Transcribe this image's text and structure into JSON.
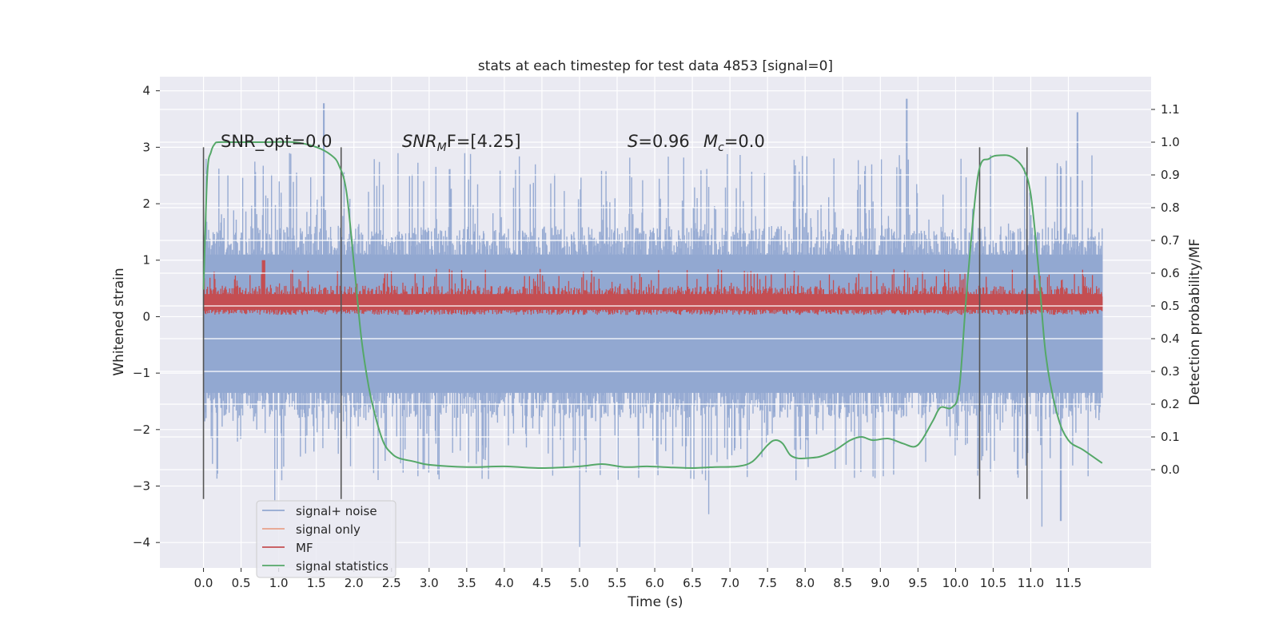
{
  "chart_data": {
    "type": "line",
    "title": "stats at each timestep for test data 4853 [signal=0]",
    "xlabel": "Time (s)",
    "ylabel": "Whitened strain",
    "y2label": "Detection probability/MF",
    "xlim": [
      -0.58,
      12.6
    ],
    "ylim": [
      -4.45,
      4.25
    ],
    "y2lim": [
      -0.3,
      1.2
    ],
    "xticks": [
      "0.0",
      "0.5",
      "1.0",
      "1.5",
      "2.0",
      "2.5",
      "3.0",
      "3.5",
      "4.0",
      "4.5",
      "5.0",
      "5.5",
      "6.0",
      "6.5",
      "7.0",
      "7.5",
      "8.0",
      "8.5",
      "9.0",
      "9.5",
      "10.0",
      "10.5",
      "11.0",
      "11.5"
    ],
    "xtick_values": [
      0.0,
      0.5,
      1.0,
      1.5,
      2.0,
      2.5,
      3.0,
      3.5,
      4.0,
      4.5,
      5.0,
      5.5,
      6.0,
      6.5,
      7.0,
      7.5,
      8.0,
      8.5,
      9.0,
      9.5,
      10.0,
      10.5,
      11.0,
      11.5
    ],
    "yticks": [
      "−4",
      "−3",
      "−2",
      "−1",
      "0",
      "1",
      "2",
      "3",
      "4"
    ],
    "ytick_values": [
      -4,
      -3,
      -2,
      -1,
      0,
      1,
      2,
      3,
      4
    ],
    "y2ticks": [
      "0.0",
      "0.1",
      "0.2",
      "0.3",
      "0.4",
      "0.5",
      "0.6",
      "0.7",
      "0.8",
      "0.9",
      "1.0",
      "1.1"
    ],
    "y2tick_values": [
      0.0,
      0.1,
      0.2,
      0.3,
      0.4,
      0.5,
      0.6,
      0.7,
      0.8,
      0.9,
      1.0,
      1.1
    ],
    "annotations": {
      "snr_opt": "SNR_opt=0.0",
      "snr_mf_sym": "SNR",
      "snr_mf_sub": "M",
      "snr_mf_rest": "F=[4.25]",
      "s_sym": "S",
      "s_rest": "=0.96",
      "mc_sym": "M",
      "mc_sub": "c",
      "mc_rest": "=0.0"
    },
    "vertical_lines": [
      {
        "x": 0.0,
        "y_range": [
          -3.23,
          3.0
        ]
      },
      {
        "x": 1.83,
        "y_range": [
          -3.23,
          3.0
        ]
      },
      {
        "x": 10.32,
        "y_range": [
          -3.23,
          3.0
        ]
      },
      {
        "x": 10.95,
        "y_range": [
          -3.23,
          3.0
        ]
      }
    ],
    "noise_envelope": {
      "t_range": [
        0.0,
        11.95
      ],
      "upper_typical": 1.6,
      "lower_typical": -1.8,
      "peaks": [
        {
          "t": 1.6,
          "v": 3.78
        },
        {
          "t": 9.35,
          "v": 3.86
        },
        {
          "t": 11.62,
          "v": 3.62
        },
        {
          "t": 5.0,
          "v": -4.08
        },
        {
          "t": 11.4,
          "v": -3.62
        },
        {
          "t": 11.15,
          "v": -3.72
        },
        {
          "t": 6.72,
          "v": -3.5
        },
        {
          "t": 0.95,
          "v": -3.25
        }
      ]
    },
    "series": [
      {
        "name": "signal+ noise",
        "color": "#92a8d1"
      },
      {
        "name": "signal only",
        "color": "#e8a18a"
      },
      {
        "name": "MF",
        "color": "#c44e52"
      },
      {
        "name": "signal statistics",
        "color": "#55a868",
        "axis": "right",
        "x": [
          0.0,
          0.05,
          0.1,
          0.15,
          0.2,
          0.4,
          0.8,
          1.2,
          1.5,
          1.7,
          1.8,
          1.9,
          2.0,
          2.1,
          2.2,
          2.3,
          2.4,
          2.5,
          2.6,
          2.8,
          3.0,
          3.5,
          4.0,
          4.5,
          5.0,
          5.3,
          5.6,
          5.9,
          6.2,
          6.5,
          6.8,
          7.1,
          7.3,
          7.5,
          7.6,
          7.7,
          7.8,
          7.9,
          8.0,
          8.2,
          8.4,
          8.6,
          8.75,
          8.9,
          9.1,
          9.3,
          9.45,
          9.55,
          9.7,
          9.8,
          9.95,
          10.05,
          10.15,
          10.3,
          10.45,
          10.6,
          10.75,
          10.9,
          11.0,
          11.1,
          11.2,
          11.35,
          11.5,
          11.7,
          11.95
        ],
        "y": [
          0.55,
          0.9,
          0.97,
          0.995,
          1.0,
          1.0,
          1.0,
          1.0,
          0.985,
          0.96,
          0.93,
          0.85,
          0.63,
          0.4,
          0.25,
          0.15,
          0.08,
          0.05,
          0.035,
          0.025,
          0.015,
          0.008,
          0.01,
          0.005,
          0.01,
          0.017,
          0.008,
          0.01,
          0.007,
          0.005,
          0.008,
          0.01,
          0.025,
          0.075,
          0.09,
          0.08,
          0.045,
          0.035,
          0.035,
          0.04,
          0.06,
          0.09,
          0.1,
          0.09,
          0.095,
          0.08,
          0.07,
          0.09,
          0.15,
          0.19,
          0.19,
          0.25,
          0.55,
          0.9,
          0.95,
          0.96,
          0.955,
          0.92,
          0.84,
          0.62,
          0.35,
          0.17,
          0.09,
          0.06,
          0.02
        ]
      }
    ],
    "mf_band": {
      "t_range": [
        0.0,
        11.95
      ],
      "low": 0.03,
      "high": 0.55,
      "peak_high": 1.0
    },
    "legend": {
      "placement": "lower-left",
      "entries": [
        "signal+ noise",
        "signal only",
        "MF",
        "signal statistics"
      ]
    },
    "grid": true,
    "colors": {
      "plot_bg": "#eaeaf2",
      "grid": "#ffffff",
      "vline": "#555555",
      "text": "#262626"
    }
  }
}
